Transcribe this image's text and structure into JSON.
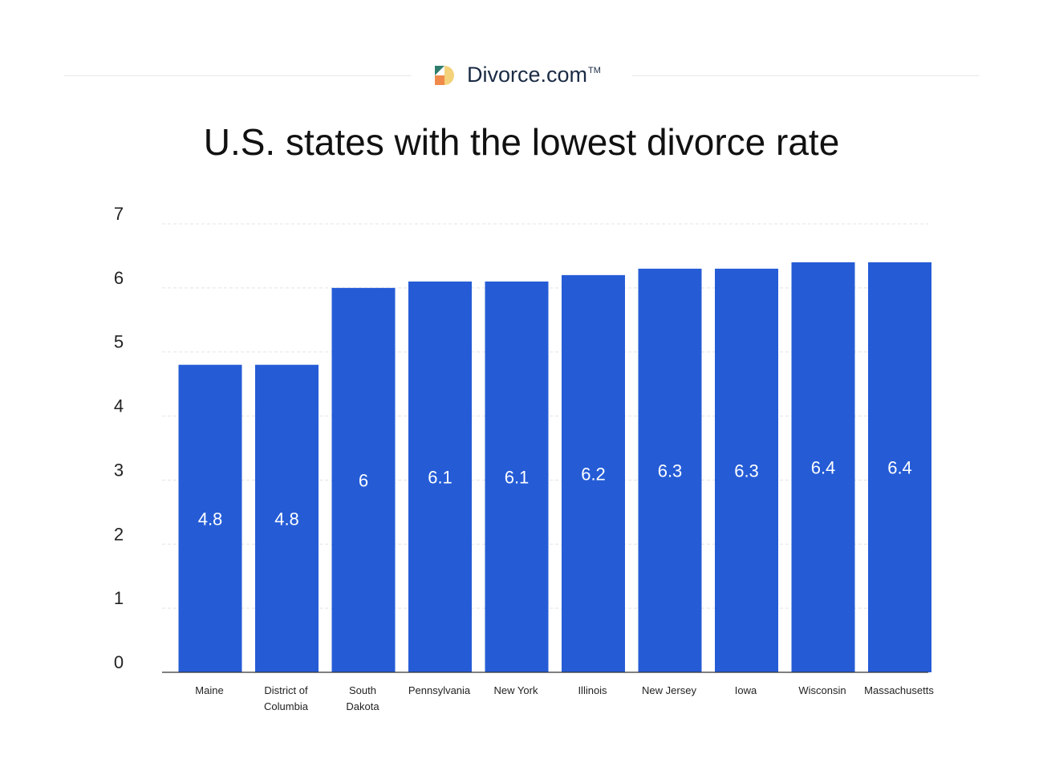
{
  "brand": {
    "name": "Divorce.com",
    "trademark": "TM",
    "logo_colors": [
      "#2f7d6d",
      "#f08a4b",
      "#f3d27a"
    ]
  },
  "chart_data": {
    "type": "bar",
    "title": "U.S. states with the lowest divorce rate",
    "categories": [
      "Maine",
      "District of Columbia",
      "South Dakota",
      "Pennsylvania",
      "New York",
      "Illinois",
      "New Jersey",
      "Iowa",
      "Wisconsin",
      "Massachusetts"
    ],
    "category_lines": [
      [
        "Maine"
      ],
      [
        "District of",
        "Columbia"
      ],
      [
        "South",
        "Dakota"
      ],
      [
        "Pennsylvania"
      ],
      [
        "New York"
      ],
      [
        "Illinois"
      ],
      [
        "New Jersey"
      ],
      [
        "Iowa"
      ],
      [
        "Wisconsin"
      ],
      [
        "Massachusetts"
      ]
    ],
    "values": [
      4.8,
      4.8,
      6,
      6.1,
      6.1,
      6.2,
      6.3,
      6.3,
      6.4,
      6.4
    ],
    "data_labels": [
      "4.8",
      "4.8",
      "6",
      "6.1",
      "6.1",
      "6.2",
      "6.3",
      "6.3",
      "6.4",
      "6.4"
    ],
    "ylim": [
      0,
      7
    ],
    "yticks": [
      0,
      1,
      2,
      3,
      4,
      5,
      6,
      7
    ],
    "grid": true,
    "bar_color": "#255cd6",
    "xlabel": "",
    "ylabel": ""
  }
}
